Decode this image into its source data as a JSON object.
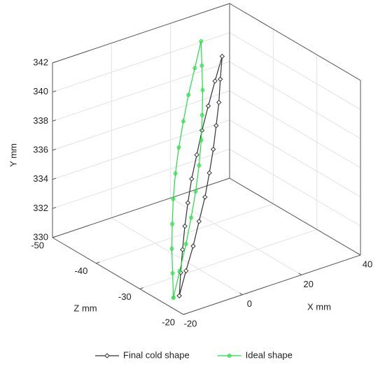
{
  "chart_data": {
    "type": "line3d",
    "xlabel": "X mm",
    "ylabel": "Y mm",
    "zlabel": "Z mm",
    "xlim": [
      -20,
      40
    ],
    "xticks": [
      -20,
      0,
      20,
      40
    ],
    "ylim": [
      330,
      342
    ],
    "yticks": [
      330,
      332,
      334,
      336,
      338,
      340,
      342
    ],
    "zlim": [
      -50,
      -20
    ],
    "zticks": [
      -50,
      -40,
      -30,
      -20
    ],
    "grid": true,
    "legend": "bottom",
    "series": [
      {
        "name": "Final cold shape",
        "color": "#333333",
        "marker": "diamond",
        "x": [
          -14,
          -11.6,
          -9.2,
          -6.5,
          -3.7,
          -0.5,
          3.0,
          6.7,
          10.6,
          14.8,
          19,
          16.6,
          14.2,
          11.5,
          8.6,
          5.5,
          2.1,
          -1.7,
          -5.6,
          -9.8,
          -14
        ],
        "y": [
          330,
          331.2,
          332.4,
          333.6,
          334.8,
          336,
          337.2,
          338.4,
          339.6,
          340.8,
          342,
          340.8,
          339.6,
          338.4,
          337.2,
          336,
          334.8,
          333.6,
          332.4,
          331.2,
          330
        ],
        "z": [
          -25,
          -26.3,
          -27.5,
          -28.8,
          -30,
          -31.3,
          -32.5,
          -33.8,
          -35,
          -36.3,
          -37.5,
          -36.3,
          -35,
          -33.8,
          -32.5,
          -31.3,
          -30,
          -28.8,
          -27.5,
          -26.3,
          -25
        ]
      },
      {
        "name": "Ideal shape",
        "color": "#22dd44",
        "marker": "circle",
        "x": [
          -16,
          -13.6,
          -11.2,
          -8.4,
          -5.4,
          -2,
          1.8,
          6,
          10.4,
          15.2,
          20,
          17.6,
          15.2,
          12.4,
          9.4,
          6,
          2.2,
          -2,
          -6.4,
          -11.2,
          -16
        ],
        "y": [
          330,
          331.2,
          332.4,
          333.6,
          334.8,
          336,
          337.2,
          338.4,
          339.6,
          340.8,
          342,
          340.8,
          339.6,
          338.4,
          337.2,
          336,
          334.8,
          333.6,
          332.4,
          331.2,
          330
        ],
        "z": [
          -25,
          -26.8,
          -28.6,
          -30.4,
          -32.2,
          -34,
          -35.8,
          -37.6,
          -39.4,
          -41.2,
          -43,
          -41.2,
          -39.4,
          -37.6,
          -35.8,
          -34,
          -32.2,
          -30.4,
          -28.6,
          -26.8,
          -25
        ]
      }
    ]
  }
}
